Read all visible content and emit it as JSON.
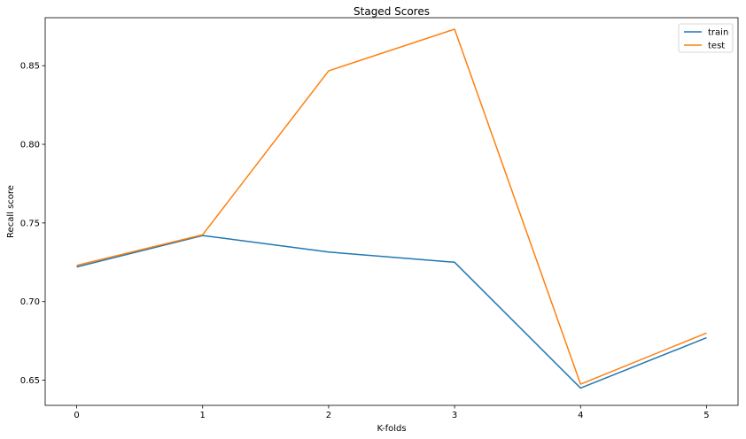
{
  "chart_data": {
    "type": "line",
    "title": "Staged Scores",
    "xlabel": "K-folds",
    "ylabel": "Recall score",
    "x": [
      0,
      1,
      2,
      3,
      4,
      5
    ],
    "xlim": [
      -0.25,
      5.25
    ],
    "ylim": [
      0.634,
      0.8805
    ],
    "xticks": [
      0,
      1,
      2,
      3,
      4,
      5
    ],
    "yticks": [
      0.65,
      0.7,
      0.75,
      0.8,
      0.85
    ],
    "ytick_labels": [
      "0.65",
      "0.70",
      "0.75",
      "0.80",
      "0.85"
    ],
    "grid": false,
    "legend_position": "top-right",
    "series": [
      {
        "name": "train",
        "color": "#1f77b4",
        "values": [
          0.722,
          0.742,
          0.7315,
          0.725,
          0.645,
          0.677
        ]
      },
      {
        "name": "test",
        "color": "#ff7f0e",
        "values": [
          0.723,
          0.7425,
          0.8467,
          0.8732,
          0.6475,
          0.68
        ]
      }
    ]
  }
}
